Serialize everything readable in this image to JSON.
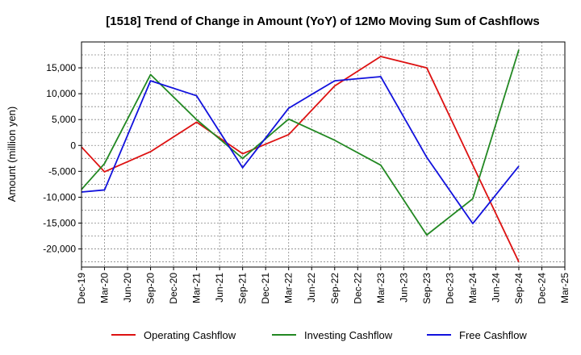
{
  "chart_data": {
    "type": "line",
    "title": "[1518]  Trend of Change in Amount (YoY) of 12Mo Moving Sum of Cashflows",
    "xlabel": "",
    "ylabel": "Amount (million yen)",
    "ylim": [
      -23500,
      20000
    ],
    "yticks": [
      -20000,
      -15000,
      -10000,
      -5000,
      0,
      5000,
      10000,
      15000
    ],
    "ytick_labels": [
      "-20,000",
      "-15,000",
      "-10,000",
      "-5,000",
      "0",
      "5,000",
      "10,000",
      "15,000"
    ],
    "categories": [
      "Dec-19",
      "Mar-20",
      "Jun-20",
      "Sep-20",
      "Dec-20",
      "Mar-21",
      "Jun-21",
      "Sep-21",
      "Dec-21",
      "Mar-22",
      "Jun-22",
      "Sep-22",
      "Dec-22",
      "Mar-23",
      "Jun-23",
      "Sep-23",
      "Dec-23",
      "Mar-24",
      "Jun-24",
      "Sep-24",
      "Dec-24",
      "Mar-25"
    ],
    "grid": true,
    "legend_position": "bottom",
    "series": [
      {
        "name": "Operating Cashflow",
        "color": "#dd1111",
        "values": [
          -300,
          -5100,
          null,
          -1200,
          null,
          4500,
          null,
          -1600,
          null,
          2100,
          null,
          11500,
          null,
          17200,
          null,
          15000,
          null,
          -3800,
          null,
          -22500,
          null,
          null
        ]
      },
      {
        "name": "Investing Cashflow",
        "color": "#228822",
        "values": [
          -8500,
          -3500,
          null,
          13700,
          null,
          5000,
          null,
          -2500,
          null,
          5100,
          null,
          1000,
          null,
          -3800,
          null,
          -17300,
          null,
          -10300,
          null,
          18500,
          null,
          null
        ]
      },
      {
        "name": "Free Cashflow",
        "color": "#1111dd",
        "values": [
          -9000,
          -8600,
          null,
          12500,
          null,
          9600,
          null,
          -4300,
          null,
          7200,
          null,
          12500,
          null,
          13300,
          null,
          -2300,
          null,
          -15100,
          null,
          -4000,
          null,
          null
        ]
      }
    ]
  }
}
